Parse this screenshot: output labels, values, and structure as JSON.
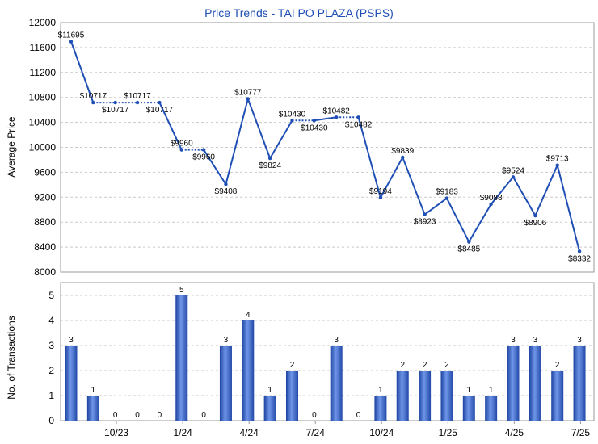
{
  "chart_data": [
    {
      "type": "line",
      "title": "Price Trends - TAI PO PLAZA (PSPS)",
      "ylabel": "Average Price",
      "ylim": [
        8000,
        12000
      ],
      "yticks": [
        8000,
        8400,
        8800,
        9200,
        9600,
        10000,
        10400,
        10800,
        11200,
        11600,
        12000
      ],
      "series": [
        {
          "color": "#1f4fb5",
          "values": [
            11695,
            10717,
            10717,
            10717,
            10717,
            9960,
            9960,
            9408,
            10777,
            9824,
            10430,
            10430,
            10482,
            10482,
            9194,
            9839,
            8923,
            9183,
            8485,
            9088,
            9524,
            8906,
            9713,
            8332
          ],
          "labels": [
            "$11695",
            "$10717",
            "$10717",
            "$10717",
            "$10717",
            "$9960",
            "$9960",
            "$9408",
            "$10777",
            "$9824",
            "$10430",
            "$10430",
            "$10482",
            "$10482",
            "$9194",
            "$9839",
            "$8923",
            "$9183",
            "$8485",
            "$9088",
            "$9524",
            "$8906",
            "$9713",
            "$8332"
          ]
        }
      ]
    },
    {
      "type": "bar",
      "ylabel": "No. of Transactions",
      "ylim": [
        0,
        5
      ],
      "yticks": [
        0,
        1,
        2,
        3,
        4,
        5
      ],
      "xtick_labels": [
        "10/23",
        "1/24",
        "4/24",
        "7/24",
        "10/24",
        "1/25",
        "4/25",
        "7/25"
      ],
      "color": "#2f5fc6",
      "values": [
        3,
        1,
        0,
        0,
        0,
        5,
        0,
        3,
        4,
        1,
        2,
        0,
        3,
        0,
        1,
        2,
        2,
        2,
        1,
        1,
        3,
        3,
        2,
        3
      ]
    }
  ]
}
